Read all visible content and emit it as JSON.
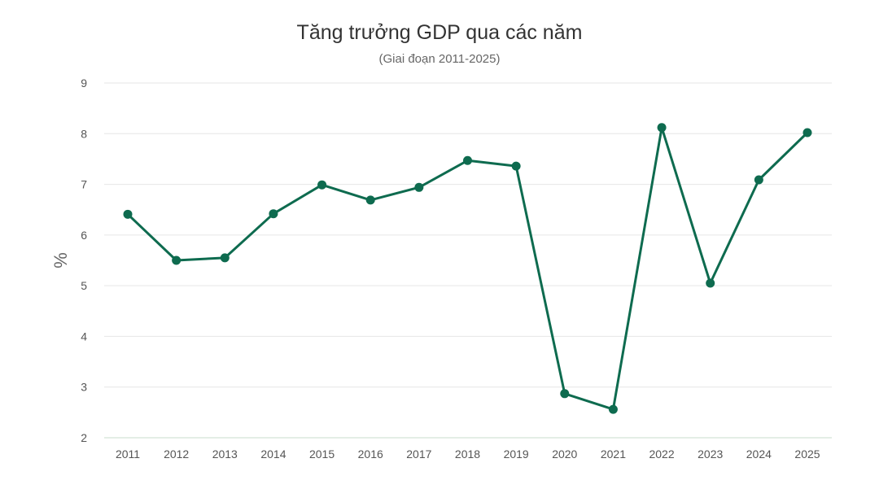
{
  "chart_data": {
    "type": "line",
    "title": "Tăng trưởng GDP qua các năm",
    "subtitle": "(Giai đoạn 2011-2025)",
    "xlabel": "",
    "ylabel": "%",
    "categories": [
      "2011",
      "2012",
      "2013",
      "2014",
      "2015",
      "2016",
      "2017",
      "2018",
      "2019",
      "2020",
      "2021",
      "2022",
      "2023",
      "2024",
      "2025"
    ],
    "series": [
      {
        "values": [
          6.41,
          5.5,
          5.55,
          6.42,
          6.99,
          6.69,
          6.94,
          7.47,
          7.36,
          2.87,
          2.56,
          8.12,
          5.05,
          7.09,
          8.02
        ]
      }
    ],
    "ylim": [
      2,
      9
    ],
    "yticks": [
      2,
      3,
      4,
      5,
      6,
      7,
      8,
      9
    ],
    "grid": true,
    "legend": "none",
    "colors": {
      "line": "#0e6b4f",
      "grid": "#e6e6e6",
      "baseline": "#c9dccc"
    }
  }
}
